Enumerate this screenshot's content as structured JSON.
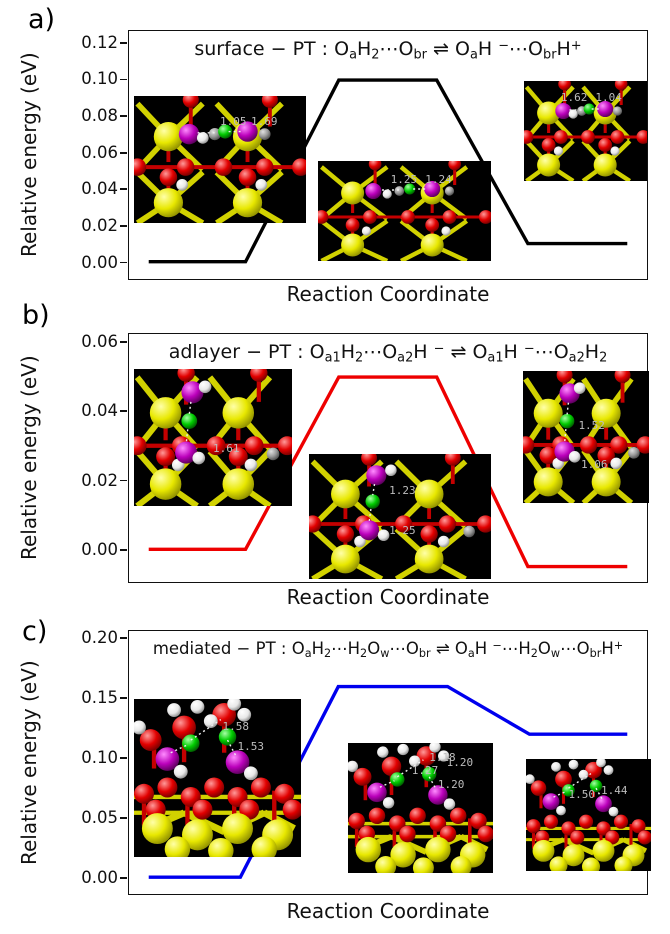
{
  "figure": {
    "background": "#ffffff",
    "panels": [
      {
        "letter": "a)",
        "title_text": "surface − PT : OaH2⋯Obr ⇌ OaH−⋯ObrH+",
        "title_segments": [
          [
            "surface − PT : O",
            ""
          ],
          [
            "a",
            "sub"
          ],
          [
            "H",
            ""
          ],
          [
            "2",
            "sub"
          ],
          [
            "⋯O",
            ""
          ],
          [
            "br",
            "sub"
          ],
          [
            " ⇌ O",
            ""
          ],
          [
            "a",
            "sub"
          ],
          [
            "H ",
            ""
          ],
          [
            "−",
            "sup"
          ],
          [
            "⋯O",
            ""
          ],
          [
            "br",
            "sub"
          ],
          [
            "H",
            ""
          ],
          [
            "+",
            "sup"
          ]
        ],
        "xlabel": "Reaction Coordinate",
        "ylabel": "Relative energy (eV)"
      },
      {
        "letter": "b)",
        "title_text": "adlayer − PT : Oa1H2⋯Oa2H− ⇌ Oa1H−⋯Oa2H2",
        "title_segments": [
          [
            "adlayer − PT : O",
            ""
          ],
          [
            "a1",
            "sub"
          ],
          [
            "H",
            ""
          ],
          [
            "2",
            "sub"
          ],
          [
            "⋯O",
            ""
          ],
          [
            "a2",
            "sub"
          ],
          [
            "H ",
            ""
          ],
          [
            "−",
            "sup"
          ],
          [
            " ⇌ O",
            ""
          ],
          [
            "a1",
            "sub"
          ],
          [
            "H ",
            ""
          ],
          [
            "−",
            "sup"
          ],
          [
            "⋯O",
            ""
          ],
          [
            "a2",
            "sub"
          ],
          [
            "H",
            ""
          ],
          [
            "2",
            "sub"
          ]
        ],
        "xlabel": "Reaction Coordinate",
        "ylabel": "Relative energy (eV)"
      },
      {
        "letter": "c)",
        "title_text": "mediated − PT : OaH2⋯H2Ow⋯Obr ⇌ OaH−⋯H2Ow⋯ObrH+",
        "title_segments": [
          [
            "mediated − PT : O",
            ""
          ],
          [
            "a",
            "sub"
          ],
          [
            "H",
            ""
          ],
          [
            "2",
            "sub"
          ],
          [
            "⋯H",
            ""
          ],
          [
            "2",
            "sub"
          ],
          [
            "O",
            ""
          ],
          [
            "w",
            "sub"
          ],
          [
            "⋯O",
            ""
          ],
          [
            "br",
            "sub"
          ],
          [
            " ⇌ O",
            ""
          ],
          [
            "a",
            "sub"
          ],
          [
            "H ",
            ""
          ],
          [
            "−",
            "sup"
          ],
          [
            "⋯H",
            ""
          ],
          [
            "2",
            "sub"
          ],
          [
            "O",
            ""
          ],
          [
            "w",
            "sub"
          ],
          [
            "⋯O",
            ""
          ],
          [
            "br",
            "sub"
          ],
          [
            "H",
            ""
          ],
          [
            "+",
            "sup"
          ]
        ],
        "xlabel": "Reaction Coordinate",
        "ylabel": "Relative energy (eV)"
      }
    ]
  },
  "chart_data": [
    {
      "type": "line",
      "panel": "a",
      "title": "surface − PT : OaH2⋯Obr ⇌ OaH−⋯ObrH+",
      "xlabel": "Reaction Coordinate",
      "ylabel": "Relative energy (eV)",
      "line_color": "#000000",
      "grid": false,
      "legend": "none",
      "ylim": [
        -0.0095,
        0.127
      ],
      "ytick_labels": [
        "0.00",
        "0.02",
        "0.04",
        "0.06",
        "0.08",
        "0.10",
        "0.12"
      ],
      "states": [
        {
          "name": "initial",
          "energy_eV": 0.0
        },
        {
          "name": "transition_state",
          "energy_eV": 0.1
        },
        {
          "name": "final",
          "energy_eV": 0.01
        }
      ],
      "barrier_eV": 0.1,
      "reaction_energy_eV": 0.01,
      "profile_points": [
        [
          0.038,
          0.0
        ],
        [
          0.225,
          0.0
        ],
        [
          0.405,
          0.1
        ],
        [
          0.594,
          0.1
        ],
        [
          0.77,
          0.01
        ],
        [
          0.962,
          0.01
        ]
      ],
      "insets": [
        {
          "role": "initial-state-structure",
          "distance_labels": [
            "1.05",
            "1.69"
          ]
        },
        {
          "role": "transition-state-structure",
          "distance_labels": [
            "1.25",
            "1.24"
          ]
        },
        {
          "role": "final-state-structure",
          "distance_labels": [
            "1.62",
            "1.04"
          ]
        }
      ]
    },
    {
      "type": "line",
      "panel": "b",
      "title": "adlayer − PT : Oa1H2⋯Oa2H− ⇌ Oa1H−⋯Oa2H2",
      "xlabel": "Reaction Coordinate",
      "ylabel": "Relative energy (eV)",
      "line_color": "#ee0000",
      "grid": false,
      "legend": "none",
      "ylim": [
        -0.0095,
        0.0625
      ],
      "ytick_labels": [
        "0.00",
        "0.02",
        "0.04",
        "0.06"
      ],
      "states": [
        {
          "name": "initial",
          "energy_eV": 0.0
        },
        {
          "name": "transition_state",
          "energy_eV": 0.05
        },
        {
          "name": "final",
          "energy_eV": -0.005
        }
      ],
      "barrier_eV": 0.05,
      "reaction_energy_eV": -0.005,
      "profile_points": [
        [
          0.038,
          0.0
        ],
        [
          0.225,
          0.0
        ],
        [
          0.405,
          0.05
        ],
        [
          0.594,
          0.05
        ],
        [
          0.77,
          -0.005
        ],
        [
          0.962,
          -0.005
        ]
      ],
      "insets": [
        {
          "role": "initial-state-structure",
          "distance_labels": [
            "1.61"
          ]
        },
        {
          "role": "transition-state-structure",
          "distance_labels": [
            "1.23",
            "1.25"
          ]
        },
        {
          "role": "final-state-structure",
          "distance_labels": [
            "1.52",
            "1.06"
          ]
        }
      ]
    },
    {
      "type": "line",
      "panel": "c",
      "title": "mediated − PT : OaH2⋯H2Ow⋯Obr ⇌ OaH−⋯H2Ow⋯ObrH+",
      "xlabel": "Reaction Coordinate",
      "ylabel": "Relative energy (eV)",
      "line_color": "#0000ee",
      "grid": false,
      "legend": "none",
      "ylim": [
        -0.0142,
        0.2067
      ],
      "ytick_labels": [
        "0.00",
        "0.05",
        "0.10",
        "0.15",
        "0.20"
      ],
      "states": [
        {
          "name": "initial",
          "energy_eV": 0.0
        },
        {
          "name": "transition_state",
          "energy_eV": 0.16
        },
        {
          "name": "final",
          "energy_eV": 0.12
        }
      ],
      "barrier_eV": 0.16,
      "reaction_energy_eV": 0.12,
      "profile_points": [
        [
          0.038,
          0.0
        ],
        [
          0.215,
          0.0
        ],
        [
          0.404,
          0.16
        ],
        [
          0.615,
          0.16
        ],
        [
          0.773,
          0.12
        ],
        [
          0.962,
          0.12
        ]
      ],
      "insets": [
        {
          "role": "initial-state-structure",
          "distance_labels": [
            "1.58",
            "1.53"
          ]
        },
        {
          "role": "transition-state-structure",
          "distance_labels": [
            "1.27",
            "1.18",
            "1.20",
            "1.20"
          ]
        },
        {
          "role": "final-state-structure",
          "distance_labels": [
            "1.50",
            "1.44"
          ]
        }
      ]
    }
  ]
}
